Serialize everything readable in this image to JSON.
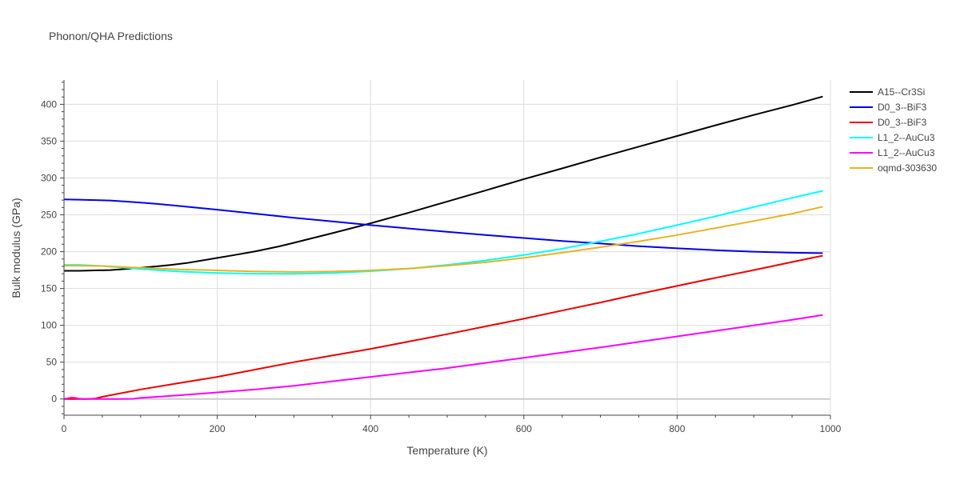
{
  "chart_data": {
    "type": "line",
    "title": "Phonon/QHA Predictions",
    "xlabel": "Temperature (K)",
    "ylabel": "Bulk modulus (GPa)",
    "xlim": [
      0,
      1000
    ],
    "ylim": [
      -22,
      433
    ],
    "xticks": [
      0,
      200,
      400,
      600,
      800,
      1000
    ],
    "yticks": [
      0,
      50,
      100,
      150,
      200,
      250,
      300,
      350,
      400
    ],
    "grid": true,
    "legend_position": "top-right",
    "series": [
      {
        "name": "A15--Cr3Si",
        "color": "#000000",
        "x": [
          0,
          20,
          40,
          60,
          80,
          100,
          120,
          140,
          160,
          180,
          200,
          220,
          250,
          280,
          300,
          350,
          400,
          450,
          500,
          550,
          600,
          650,
          700,
          750,
          800,
          850,
          900,
          950,
          990
        ],
        "y": [
          174,
          174,
          174.5,
          175,
          176.5,
          178,
          180,
          182,
          184.5,
          188,
          191.5,
          195,
          200.5,
          207,
          212,
          225,
          238.5,
          253,
          268,
          283,
          298.5,
          313,
          328,
          342.5,
          357,
          371.5,
          385.5,
          399,
          410.5
        ]
      },
      {
        "name": "D0_3--BiF3",
        "color": "#0000ee",
        "x": [
          0,
          20,
          40,
          60,
          80,
          100,
          120,
          140,
          160,
          180,
          200,
          250,
          300,
          350,
          400,
          450,
          500,
          550,
          600,
          650,
          700,
          750,
          800,
          850,
          900,
          950,
          990
        ],
        "y": [
          271,
          270.5,
          270,
          269.5,
          268,
          266.5,
          265,
          263,
          261,
          259,
          257,
          251.5,
          246,
          241,
          236,
          231.5,
          227,
          222.5,
          218.5,
          214.5,
          211,
          207.5,
          204.5,
          202,
          200,
          198.5,
          198
        ]
      },
      {
        "name": "D0_3--BiF3",
        "color": "#ee0000",
        "x": [
          0,
          10,
          20,
          30,
          40,
          50,
          60,
          80,
          100,
          150,
          200,
          250,
          300,
          350,
          400,
          450,
          500,
          550,
          600,
          650,
          700,
          750,
          800,
          850,
          900,
          950,
          990
        ],
        "y": [
          0,
          0,
          0,
          0,
          0.5,
          3,
          5,
          9,
          13,
          21.5,
          30,
          40,
          50,
          59,
          68,
          78,
          88,
          98.5,
          109,
          120,
          131,
          142.5,
          153.5,
          164.5,
          175,
          186,
          194.5
        ]
      },
      {
        "name": "L1_2--AuCu3",
        "color": "#00ffff",
        "x": [
          0,
          20,
          50,
          100,
          150,
          200,
          250,
          300,
          350,
          400,
          450,
          500,
          550,
          600,
          650,
          700,
          750,
          800,
          850,
          900,
          950,
          990
        ],
        "y": [
          182,
          182,
          180.5,
          176.5,
          173,
          171,
          170,
          170,
          171,
          173.5,
          177,
          182,
          188,
          195.5,
          204,
          214,
          224.5,
          236,
          248,
          260.5,
          273,
          282.5
        ]
      },
      {
        "name": "L1_2--AuCu3",
        "color": "#ff00ff",
        "x": [
          0,
          5,
          10,
          15,
          20,
          25,
          30,
          50,
          70,
          90,
          100,
          150,
          200,
          250,
          300,
          350,
          400,
          450,
          500,
          550,
          600,
          650,
          700,
          750,
          800,
          850,
          900,
          950,
          990
        ],
        "y": [
          0,
          1,
          2,
          1.5,
          0.5,
          0,
          0,
          0,
          0,
          0.3,
          1.5,
          5,
          9,
          13,
          18,
          24,
          30,
          36,
          42,
          49,
          56,
          63,
          70,
          77.5,
          85,
          92.5,
          100,
          107.5,
          114
        ]
      },
      {
        "name": "oqmd-303630",
        "color": "#e6b422",
        "x": [
          0,
          20,
          50,
          100,
          150,
          200,
          250,
          300,
          350,
          400,
          450,
          500,
          550,
          600,
          650,
          700,
          750,
          800,
          850,
          900,
          950,
          990
        ],
        "y": [
          181,
          181,
          180.5,
          178,
          176,
          174.5,
          173,
          172.5,
          173,
          174.5,
          177,
          181,
          185.5,
          191.5,
          198.5,
          206,
          214,
          222.5,
          232,
          241.5,
          251.5,
          261
        ]
      }
    ]
  }
}
